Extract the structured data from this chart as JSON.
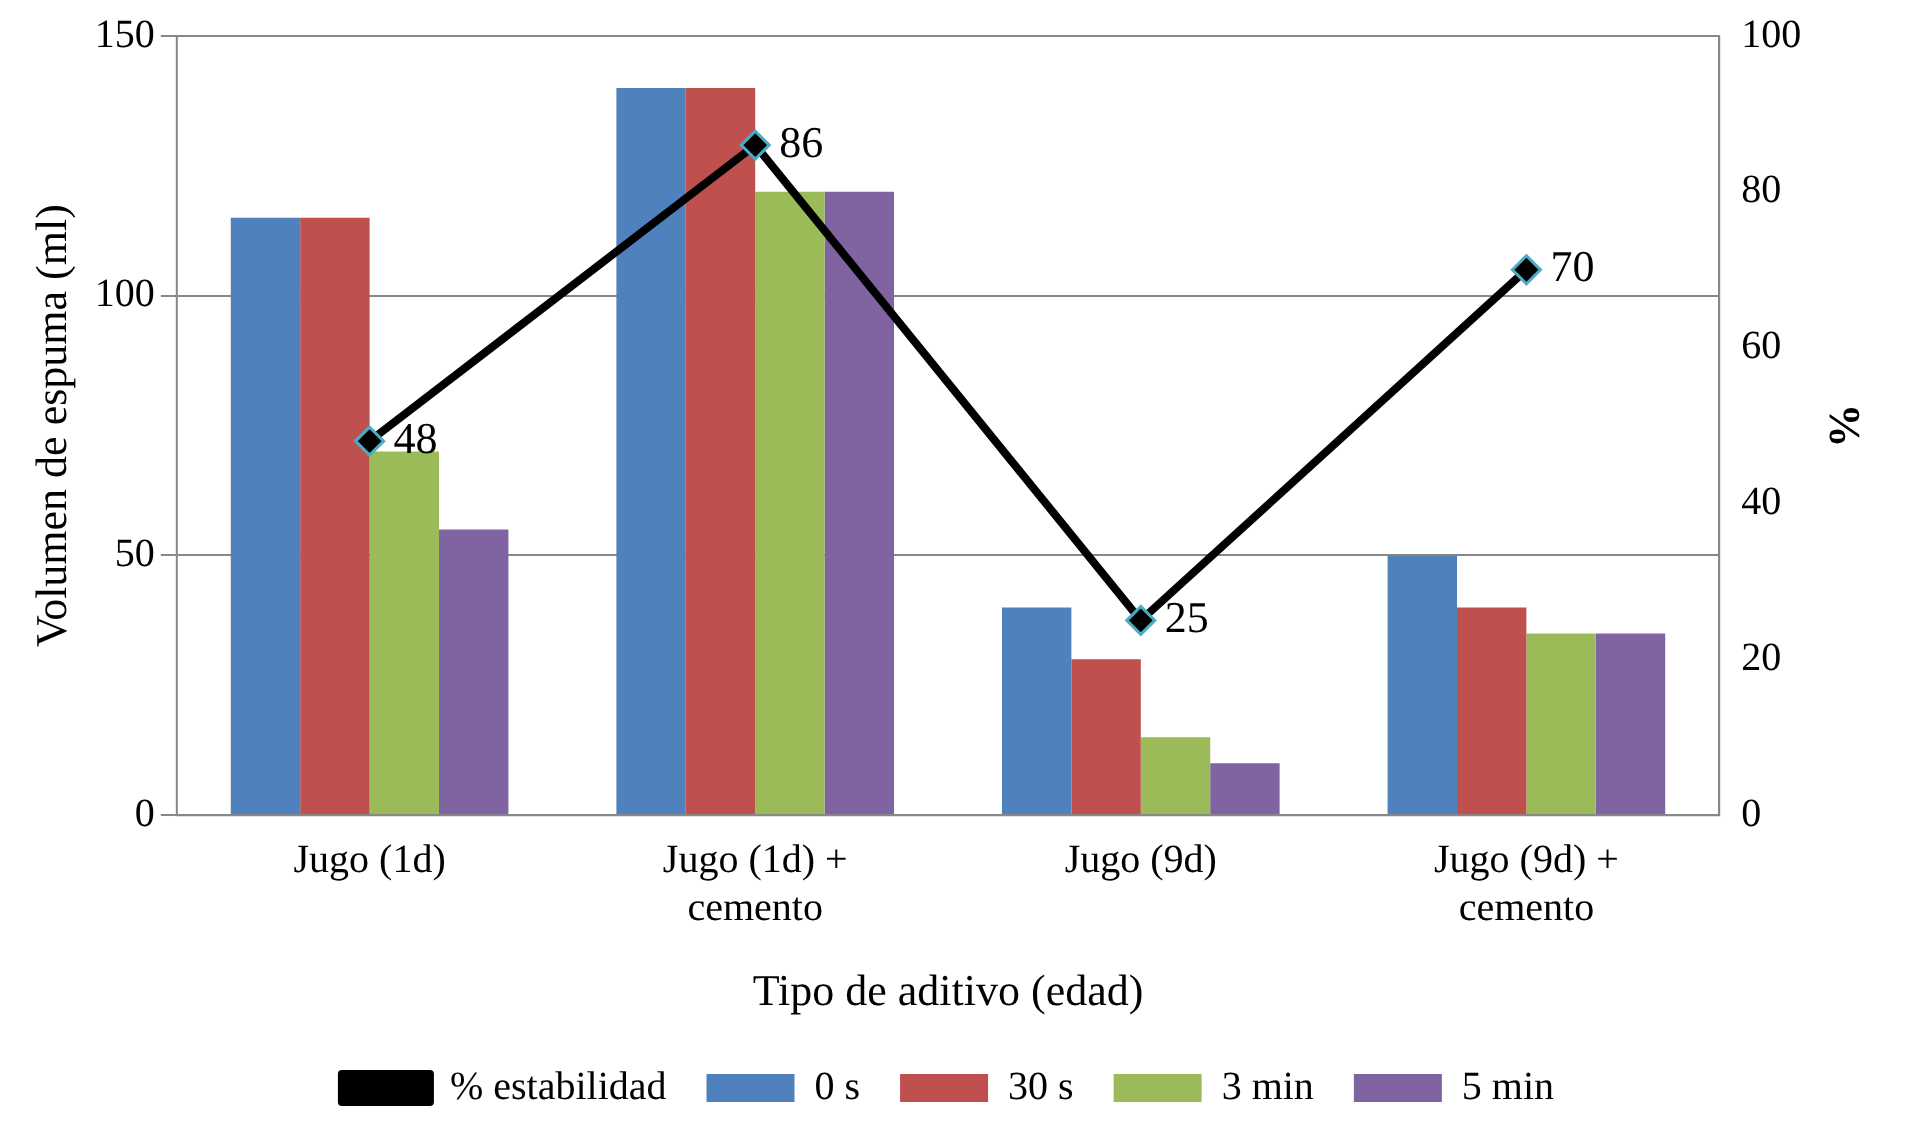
{
  "chart_data": {
    "type": "bar",
    "xlabel": "Tipo de aditivo (edad)",
    "ylabel": "Volumen de espuma (ml)",
    "y2label": "%",
    "categories": [
      "Jugo (1d)",
      "Jugo (1d) + cemento",
      "Jugo (9d)",
      "Jugo (9d) + cemento"
    ],
    "series": [
      {
        "name": "0 s",
        "color": "#4f81bd",
        "values": [
          115,
          140,
          40,
          50
        ]
      },
      {
        "name": "30 s",
        "color": "#c0504d",
        "values": [
          115,
          140,
          30,
          40
        ]
      },
      {
        "name": "3 min",
        "color": "#9bbb59",
        "values": [
          70,
          120,
          15,
          35
        ]
      },
      {
        "name": "5 min",
        "color": "#8064a2",
        "values": [
          55,
          120,
          10,
          35
        ]
      },
      {
        "name": "% estabilidad",
        "type": "line",
        "axis": "y2",
        "color": "#000000",
        "marker": "diamond",
        "values": [
          48,
          86,
          25,
          70
        ],
        "value_labels": [
          "48",
          "86",
          "25",
          "70"
        ]
      }
    ],
    "ylim": [
      0,
      150
    ],
    "yticks": [
      0,
      50,
      100,
      150
    ],
    "y2lim": [
      0,
      100
    ],
    "y2ticks": [
      0,
      20,
      40,
      60,
      80,
      100
    ],
    "grid": "y",
    "legend": "bottom"
  }
}
